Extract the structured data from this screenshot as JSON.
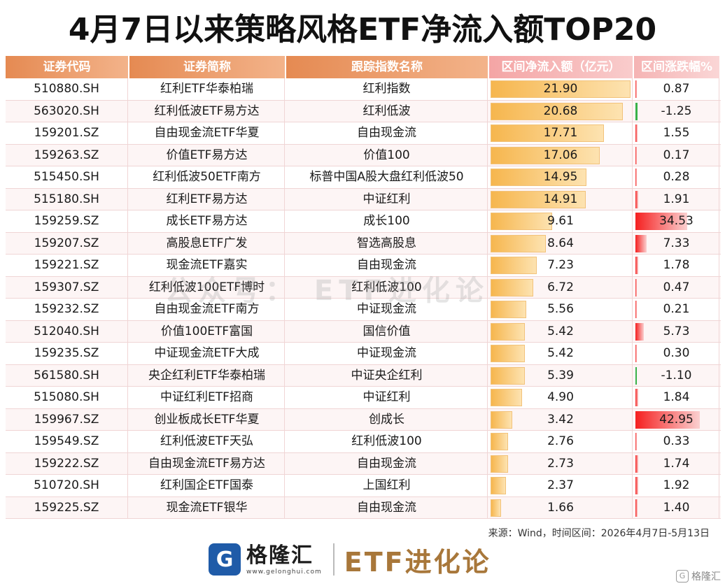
{
  "title": "4月7日以来策略风格ETF净流入额TOP20",
  "headers": [
    "证券代码",
    "证券简称",
    "跟踪指数名称",
    "区间净流入额（亿元）",
    "区间涨跌幅%"
  ],
  "chart_data": {
    "type": "table",
    "columns": [
      "证券代码",
      "证券简称",
      "跟踪指数名称",
      "区间净流入额（亿元）",
      "区间涨跌幅%"
    ],
    "rows": [
      {
        "code": "510880.SH",
        "name": "红利ETF华泰柏瑞",
        "index": "红利指数",
        "inflow": 21.9,
        "inflow_text": "21.90",
        "change": 0.87,
        "change_text": "0.87"
      },
      {
        "code": "563020.SH",
        "name": "红利低波ETF易方达",
        "index": "红利低波",
        "inflow": 20.68,
        "inflow_text": "20.68",
        "change": -1.25,
        "change_text": "-1.25"
      },
      {
        "code": "159201.SZ",
        "name": "自由现金流ETF华夏",
        "index": "自由现金流",
        "inflow": 17.71,
        "inflow_text": "17.71",
        "change": 1.55,
        "change_text": "1.55"
      },
      {
        "code": "159263.SZ",
        "name": "价值ETF易方达",
        "index": "价值100",
        "inflow": 17.06,
        "inflow_text": "17.06",
        "change": 0.17,
        "change_text": "0.17"
      },
      {
        "code": "515450.SH",
        "name": "红利低波50ETF南方",
        "index": "标普中国A股大盘红利低波50",
        "inflow": 14.95,
        "inflow_text": "14.95",
        "change": 0.28,
        "change_text": "0.28"
      },
      {
        "code": "515180.SH",
        "name": "红利ETF易方达",
        "index": "中证红利",
        "inflow": 14.91,
        "inflow_text": "14.91",
        "change": 1.91,
        "change_text": "1.91"
      },
      {
        "code": "159259.SZ",
        "name": "成长ETF易方达",
        "index": "成长100",
        "inflow": 9.61,
        "inflow_text": "9.61",
        "change": 34.53,
        "change_text": "34.53"
      },
      {
        "code": "159207.SZ",
        "name": "高股息ETF广发",
        "index": "智选高股息",
        "inflow": 8.64,
        "inflow_text": "8.64",
        "change": 7.33,
        "change_text": "7.33"
      },
      {
        "code": "159221.SZ",
        "name": "现金流ETF嘉实",
        "index": "自由现金流",
        "inflow": 7.23,
        "inflow_text": "7.23",
        "change": 1.78,
        "change_text": "1.78"
      },
      {
        "code": "159307.SZ",
        "name": "红利低波100ETF博时",
        "index": "红利低波100",
        "inflow": 6.72,
        "inflow_text": "6.72",
        "change": 0.47,
        "change_text": "0.47"
      },
      {
        "code": "159232.SZ",
        "name": "自由现金流ETF南方",
        "index": "中证现金流",
        "inflow": 5.56,
        "inflow_text": "5.56",
        "change": 0.21,
        "change_text": "0.21"
      },
      {
        "code": "512040.SH",
        "name": "价值100ETF富国",
        "index": "国信价值",
        "inflow": 5.42,
        "inflow_text": "5.42",
        "change": 5.73,
        "change_text": "5.73"
      },
      {
        "code": "159235.SZ",
        "name": "中证现金流ETF大成",
        "index": "中证现金流",
        "inflow": 5.42,
        "inflow_text": "5.42",
        "change": 0.3,
        "change_text": "0.30"
      },
      {
        "code": "561580.SH",
        "name": "央企红利ETF华泰柏瑞",
        "index": "中证央企红利",
        "inflow": 5.39,
        "inflow_text": "5.39",
        "change": -1.1,
        "change_text": "-1.10"
      },
      {
        "code": "515080.SH",
        "name": "中证红利ETF招商",
        "index": "中证红利",
        "inflow": 4.9,
        "inflow_text": "4.90",
        "change": 1.84,
        "change_text": "1.84"
      },
      {
        "code": "159967.SZ",
        "name": "创业板成长ETF华夏",
        "index": "创成长",
        "inflow": 3.42,
        "inflow_text": "3.42",
        "change": 42.95,
        "change_text": "42.95"
      },
      {
        "code": "159549.SZ",
        "name": "红利低波ETF天弘",
        "index": "红利低波100",
        "inflow": 2.76,
        "inflow_text": "2.76",
        "change": 0.33,
        "change_text": "0.33"
      },
      {
        "code": "159222.SZ",
        "name": "自由现金流ETF易方达",
        "index": "自由现金流",
        "inflow": 2.73,
        "inflow_text": "2.73",
        "change": 1.74,
        "change_text": "1.74"
      },
      {
        "code": "510720.SH",
        "name": "红利国企ETF国泰",
        "index": "上国红利",
        "inflow": 2.37,
        "inflow_text": "2.37",
        "change": 1.92,
        "change_text": "1.92"
      },
      {
        "code": "159225.SZ",
        "name": "现金流ETF银华",
        "index": "自由现金流",
        "inflow": 1.66,
        "inflow_text": "1.66",
        "change": 1.4,
        "change_text": "1.40"
      }
    ]
  },
  "watermark": "公众号： ETF进化论",
  "source": "来源：Wind，时间区间：2026年4月7日-5月13日",
  "brand": {
    "logo_char": "G",
    "name": "格隆汇",
    "url": "www.gelonghui.com",
    "etf": "ETF进化论"
  },
  "corner": {
    "icon": "G",
    "text": "格隆汇"
  },
  "colors": {
    "bar": "#f6b64e",
    "pos": "#f52020",
    "neg": "#39b24a",
    "header_orange": "#e58a52",
    "header_pink": "#f4a5a5"
  }
}
